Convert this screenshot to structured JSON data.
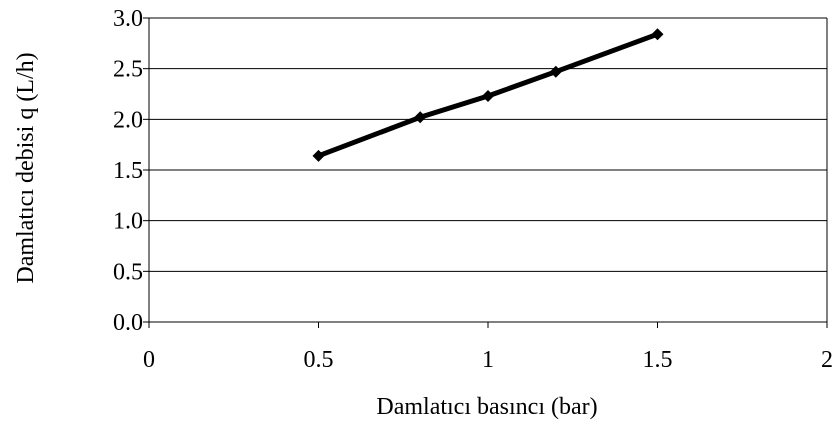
{
  "chart_data": {
    "type": "line",
    "xlabel": "Damlatıcı basıncı (bar)",
    "ylabel": "Damlatıcı debisi q (L/h)",
    "xlim": [
      0,
      2
    ],
    "ylim": [
      0,
      3
    ],
    "x_ticks": [
      "0",
      "0.5",
      "1",
      "1.5",
      "2"
    ],
    "y_ticks": [
      "0.0",
      "0.5",
      "1.0",
      "1.5",
      "2.0",
      "2.5",
      "3.0"
    ],
    "grid": "horizontal",
    "legend": "none",
    "series": [
      {
        "x": [
          0.5,
          0.8,
          1.0,
          1.2,
          1.5
        ],
        "y": [
          1.64,
          2.02,
          2.23,
          2.47,
          2.84
        ]
      }
    ],
    "line_color": "#000000",
    "marker": "diamond"
  }
}
